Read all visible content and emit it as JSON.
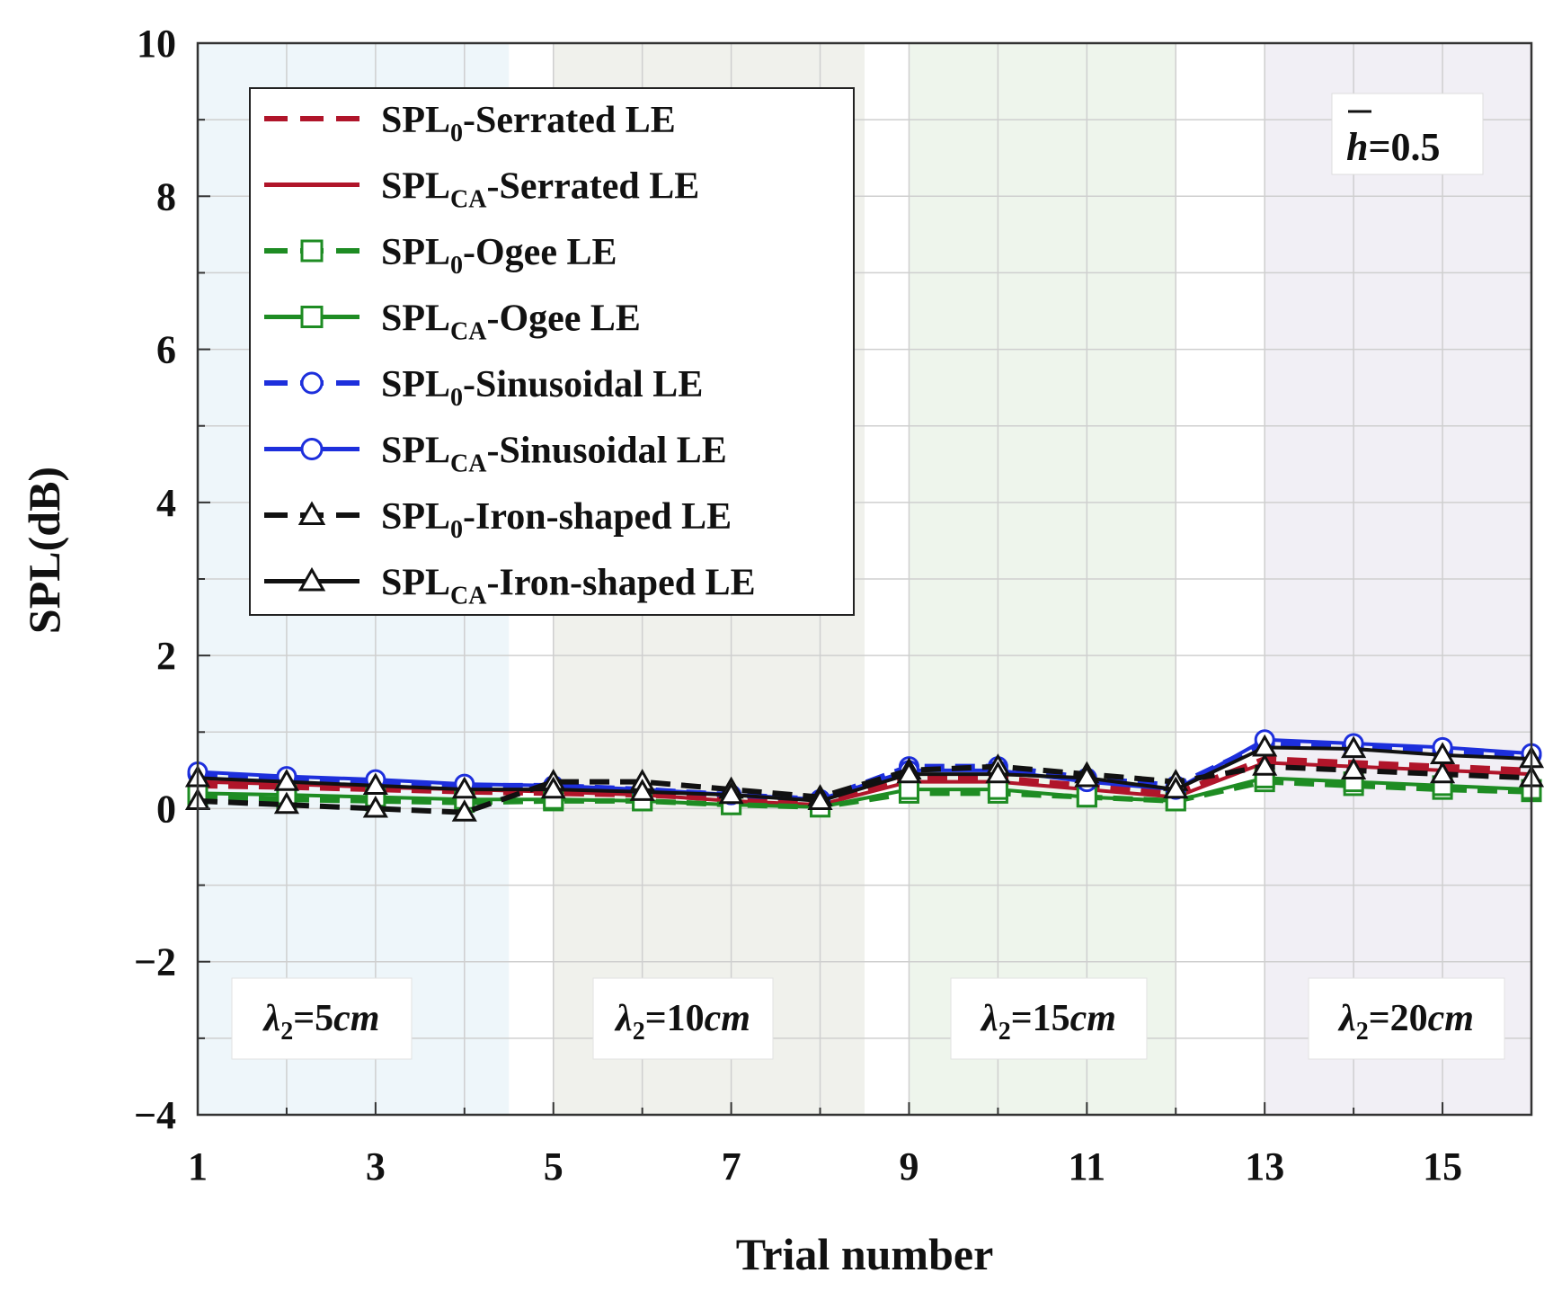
{
  "chart_data": {
    "type": "line",
    "title": "",
    "xlabel": "Trial number",
    "ylabel": "SPL(dB)",
    "xlim": [
      1,
      16
    ],
    "ylim": [
      -4,
      10
    ],
    "x_ticks": [
      "1",
      "3",
      "5",
      "7",
      "9",
      "11",
      "13",
      "15"
    ],
    "y_ticks": [
      "10",
      "8",
      "6",
      "4",
      "2",
      "0",
      "−2",
      "−4"
    ],
    "grid": true,
    "legend_position": "top-left",
    "h_label": {
      "symbol": "h",
      "value": "=0.5"
    },
    "regions": [
      {
        "x_start": 1,
        "x_end": 4.5,
        "color": "#eef6fa",
        "label": {
          "symbol": "λ",
          "sub": "2",
          "eq": "=",
          "num": "5",
          "unit": "cm"
        }
      },
      {
        "x_start": 5,
        "x_end": 8.5,
        "color": "#f0f1ec",
        "label": {
          "symbol": "λ",
          "sub": "2",
          "eq": "=",
          "num": "10",
          "unit": "cm"
        }
      },
      {
        "x_start": 9,
        "x_end": 12,
        "color": "#eef5ec",
        "label": {
          "symbol": "λ",
          "sub": "2",
          "eq": "=",
          "num": "15",
          "unit": "cm"
        }
      },
      {
        "x_start": 13,
        "x_end": 16,
        "color": "#f1eff5",
        "label": {
          "symbol": "λ",
          "sub": "2",
          "eq": "=",
          "num": "20",
          "unit": "cm"
        }
      }
    ],
    "x": [
      1,
      2,
      3,
      4,
      5,
      6,
      7,
      8,
      9,
      10,
      11,
      12,
      13,
      14,
      15,
      16
    ],
    "series": [
      {
        "base": "SPL",
        "sub": "0",
        "suffix": "-Serrated LE",
        "color": "#b0152a",
        "dash": true,
        "marker": "none",
        "values": [
          0.3,
          0.28,
          0.25,
          0.22,
          0.2,
          0.18,
          0.12,
          0.08,
          0.4,
          0.4,
          0.3,
          0.2,
          0.65,
          0.6,
          0.55,
          0.5
        ]
      },
      {
        "base": "SPL",
        "sub": "CA",
        "suffix": "-Serrated LE",
        "color": "#b0152a",
        "dash": false,
        "marker": "none",
        "values": [
          0.35,
          0.32,
          0.28,
          0.25,
          0.22,
          0.18,
          0.1,
          0.05,
          0.35,
          0.35,
          0.25,
          0.15,
          0.6,
          0.55,
          0.5,
          0.45
        ]
      },
      {
        "base": "SPL",
        "sub": "0",
        "suffix": "-Ogee LE",
        "color": "#1e8c23",
        "dash": true,
        "marker": "square",
        "values": [
          0.15,
          0.12,
          0.1,
          0.08,
          0.1,
          0.1,
          0.05,
          0.02,
          0.2,
          0.2,
          0.15,
          0.1,
          0.35,
          0.3,
          0.25,
          0.22
        ]
      },
      {
        "base": "SPL",
        "sub": "CA",
        "suffix": "-Ogee LE",
        "color": "#1e8c23",
        "dash": false,
        "marker": "square",
        "values": [
          0.2,
          0.18,
          0.15,
          0.12,
          0.12,
          0.1,
          0.05,
          0.02,
          0.25,
          0.25,
          0.15,
          0.1,
          0.4,
          0.35,
          0.3,
          0.25
        ]
      },
      {
        "base": "SPL",
        "sub": "0",
        "suffix": "-Sinusoidal LE",
        "color": "#1d2fdc",
        "dash": true,
        "marker": "circle",
        "values": [
          0.45,
          0.4,
          0.35,
          0.3,
          0.3,
          0.25,
          0.18,
          0.12,
          0.55,
          0.55,
          0.4,
          0.3,
          0.85,
          0.8,
          0.75,
          0.7
        ]
      },
      {
        "base": "SPL",
        "sub": "CA",
        "suffix": "-Sinusoidal LE",
        "color": "#1d2fdc",
        "dash": false,
        "marker": "circle",
        "values": [
          0.48,
          0.42,
          0.38,
          0.32,
          0.3,
          0.25,
          0.18,
          0.12,
          0.5,
          0.5,
          0.35,
          0.25,
          0.9,
          0.85,
          0.8,
          0.72
        ]
      },
      {
        "base": "SPL",
        "sub": "0",
        "suffix": "-Iron-shaped LE",
        "color": "#111111",
        "dash": true,
        "marker": "triangle",
        "values": [
          0.1,
          0.05,
          0.0,
          -0.05,
          0.35,
          0.35,
          0.25,
          0.15,
          0.5,
          0.55,
          0.45,
          0.35,
          0.55,
          0.5,
          0.45,
          0.4
        ]
      },
      {
        "base": "SPL",
        "sub": "CA",
        "suffix": "-Iron-shaped LE",
        "color": "#111111",
        "dash": false,
        "marker": "triangle",
        "values": [
          0.4,
          0.35,
          0.3,
          0.25,
          0.25,
          0.22,
          0.18,
          0.1,
          0.45,
          0.45,
          0.4,
          0.25,
          0.8,
          0.78,
          0.7,
          0.65
        ]
      }
    ]
  }
}
